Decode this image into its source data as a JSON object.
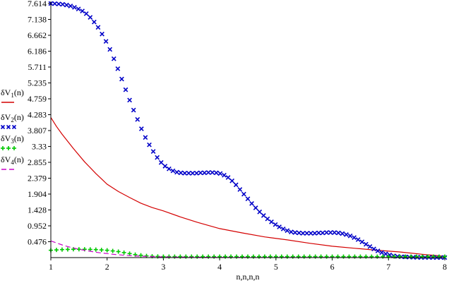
{
  "chart_data": {
    "type": "line",
    "xlabel": "n,n,n,n",
    "xlim": [
      1,
      8
    ],
    "ylim": [
      0,
      7.614
    ],
    "x_ticks": [
      "1",
      "2",
      "3",
      "4",
      "5",
      "6",
      "7",
      "8"
    ],
    "y_ticks": [
      "0.476",
      "0.952",
      "1.428",
      "1.904",
      "2.379",
      "2.855",
      "3.33",
      "3.807",
      "4.283",
      "4.759",
      "5.235",
      "5.711",
      "6.186",
      "6.662",
      "7.138",
      "7.614"
    ],
    "legend": [
      "δV1(n)",
      "δV2(n)",
      "δV3(n)",
      "δV4(n)"
    ],
    "series": [
      {
        "name": "δV1(n)",
        "style": "line",
        "color": "#d40000",
        "x": [
          1.0,
          1.1,
          1.2,
          1.4,
          1.6,
          1.8,
          2.0,
          2.2,
          2.4,
          2.6,
          2.8,
          3.0,
          3.3,
          3.6,
          4.0,
          4.4,
          4.8,
          5.2,
          5.6,
          6.0,
          6.4,
          6.8,
          7.2,
          7.6,
          8.0
        ],
        "y": [
          4.2,
          3.93,
          3.7,
          3.27,
          2.87,
          2.52,
          2.2,
          1.98,
          1.8,
          1.63,
          1.5,
          1.4,
          1.22,
          1.06,
          0.87,
          0.74,
          0.62,
          0.53,
          0.43,
          0.34,
          0.28,
          0.22,
          0.17,
          0.1,
          0.04
        ]
      },
      {
        "name": "δV2(n)",
        "style": "cross",
        "color": "#0000c8",
        "x": [
          1.0,
          1.07,
          1.14,
          1.21,
          1.28,
          1.35,
          1.42,
          1.49,
          1.56,
          1.63,
          1.7,
          1.77,
          1.84,
          1.91,
          1.98,
          2.05,
          2.12,
          2.19,
          2.26,
          2.33,
          2.4,
          2.47,
          2.54,
          2.61,
          2.68,
          2.75,
          2.82,
          2.89,
          2.96,
          3.03,
          3.1,
          3.17,
          3.24,
          3.31,
          3.38,
          3.45,
          3.52,
          3.59,
          3.66,
          3.73,
          3.8,
          3.87,
          3.94,
          4.01,
          4.08,
          4.15,
          4.22,
          4.29,
          4.36,
          4.43,
          4.5,
          4.57,
          4.64,
          4.71,
          4.78,
          4.85,
          4.92,
          4.99,
          5.06,
          5.13,
          5.2,
          5.27,
          5.34,
          5.41,
          5.48,
          5.55,
          5.62,
          5.69,
          5.76,
          5.83,
          5.9,
          5.97,
          6.04,
          6.11,
          6.18,
          6.25,
          6.32,
          6.39,
          6.46,
          6.53,
          6.6,
          6.67,
          6.74,
          6.81,
          6.88,
          6.95,
          7.02,
          7.09,
          7.16,
          7.23,
          7.3,
          7.37,
          7.44,
          7.51,
          7.58,
          7.65,
          7.72,
          7.79,
          7.86,
          7.93,
          8.0
        ],
        "y": [
          7.614,
          7.61,
          7.6,
          7.59,
          7.57,
          7.54,
          7.5,
          7.45,
          7.39,
          7.31,
          7.2,
          7.06,
          6.9,
          6.7,
          6.48,
          6.24,
          5.96,
          5.66,
          5.35,
          5.03,
          4.72,
          4.42,
          4.14,
          3.86,
          3.6,
          3.38,
          3.18,
          3.0,
          2.85,
          2.74,
          2.66,
          2.6,
          2.56,
          2.54,
          2.53,
          2.53,
          2.53,
          2.53,
          2.54,
          2.54,
          2.55,
          2.55,
          2.54,
          2.52,
          2.47,
          2.4,
          2.3,
          2.18,
          2.04,
          1.9,
          1.76,
          1.62,
          1.49,
          1.37,
          1.26,
          1.16,
          1.07,
          0.99,
          0.92,
          0.86,
          0.81,
          0.77,
          0.75,
          0.74,
          0.73,
          0.73,
          0.73,
          0.73,
          0.74,
          0.74,
          0.75,
          0.75,
          0.75,
          0.74,
          0.72,
          0.69,
          0.65,
          0.6,
          0.54,
          0.47,
          0.4,
          0.33,
          0.26,
          0.2,
          0.15,
          0.11,
          0.08,
          0.05,
          0.035,
          0.025,
          0.02,
          0.015,
          0.01,
          0.008,
          0.006,
          0.005,
          0.004,
          0.003,
          0.003,
          0.002,
          0.002
        ]
      },
      {
        "name": "δV3(n)",
        "style": "plus",
        "color": "#00c800",
        "x": [
          1.0,
          1.1,
          1.2,
          1.3,
          1.4,
          1.5,
          1.6,
          1.7,
          1.8,
          1.9,
          2.0,
          2.1,
          2.2,
          2.3,
          2.4,
          2.5,
          2.6,
          2.7,
          2.8,
          2.9,
          3.0,
          3.1,
          3.2,
          3.3,
          3.4,
          3.5,
          3.6,
          3.7,
          3.8,
          3.9,
          4.0,
          4.1,
          4.2,
          4.3,
          4.4,
          4.5,
          4.6,
          4.7,
          4.8,
          4.9,
          5.0,
          5.1,
          5.2,
          5.3,
          5.4,
          5.5,
          5.6,
          5.7,
          5.8,
          5.9,
          6.0,
          6.1,
          6.2,
          6.3,
          6.4,
          6.5,
          6.6,
          6.7,
          6.8,
          6.9,
          7.0,
          7.1,
          7.2,
          7.3,
          7.4,
          7.5,
          7.6,
          7.7,
          7.8,
          7.9,
          8.0
        ],
        "y": [
          0.22,
          0.23,
          0.24,
          0.245,
          0.25,
          0.25,
          0.25,
          0.245,
          0.24,
          0.23,
          0.22,
          0.2,
          0.18,
          0.15,
          0.12,
          0.09,
          0.07,
          0.05,
          0.04,
          0.035,
          0.03,
          0.03,
          0.03,
          0.03,
          0.03,
          0.03,
          0.03,
          0.03,
          0.03,
          0.03,
          0.03,
          0.03,
          0.03,
          0.03,
          0.03,
          0.03,
          0.03,
          0.03,
          0.03,
          0.03,
          0.03,
          0.03,
          0.03,
          0.03,
          0.03,
          0.03,
          0.03,
          0.03,
          0.03,
          0.03,
          0.03,
          0.03,
          0.03,
          0.03,
          0.03,
          0.03,
          0.03,
          0.03,
          0.03,
          0.03,
          0.03,
          0.03,
          0.03,
          0.03,
          0.03,
          0.03,
          0.03,
          0.03,
          0.03,
          0.03,
          0.03
        ]
      },
      {
        "name": "δV4(n)",
        "style": "dash",
        "color": "#c800c8",
        "x": [
          1.0,
          1.1,
          1.2,
          1.3,
          1.4,
          1.5,
          1.6,
          1.7,
          1.8,
          1.9,
          2.0,
          2.1,
          2.2,
          2.3,
          2.4,
          2.5,
          2.6,
          2.7,
          2.8,
          2.9,
          3.0,
          3.2,
          3.4,
          3.6,
          3.8,
          4.0,
          4.5,
          5.0,
          5.5,
          6.0,
          6.5,
          7.0,
          7.5,
          8.0
        ],
        "y": [
          0.5,
          0.44,
          0.38,
          0.33,
          0.29,
          0.25,
          0.22,
          0.19,
          0.16,
          0.14,
          0.12,
          0.1,
          0.085,
          0.07,
          0.06,
          0.05,
          0.04,
          0.035,
          0.03,
          0.025,
          0.02,
          0.015,
          0.012,
          0.01,
          0.008,
          0.006,
          0.004,
          0.003,
          0.002,
          0.002,
          0.001,
          0.001,
          0.001,
          0.001
        ]
      }
    ]
  }
}
